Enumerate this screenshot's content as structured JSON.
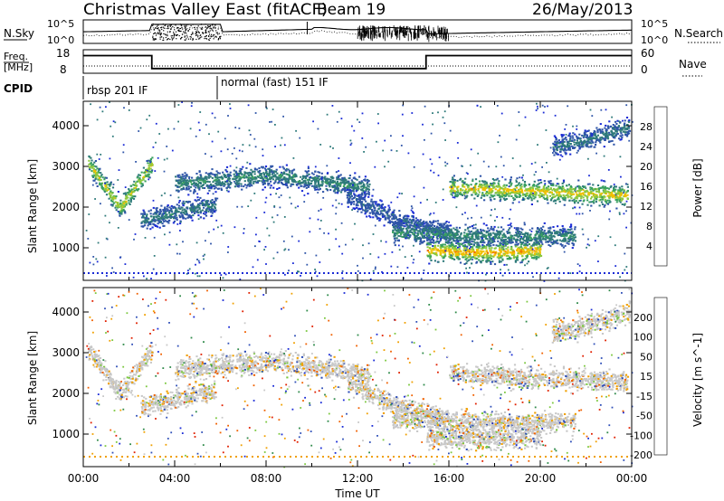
{
  "header": {
    "station": "Christmas Valley East (fitACF)",
    "beam": "Beam 19",
    "date": "26/May/2013"
  },
  "chart_data": [
    {
      "type": "line",
      "panel": "noise",
      "left_label": "N.Sky",
      "right_label": "N.Search",
      "left_ticks": [
        "10^5",
        "10^0"
      ],
      "right_ticks": [
        "10^5",
        "10^0"
      ],
      "xlim": [
        "00:00",
        "24:00"
      ]
    },
    {
      "type": "line",
      "panel": "frequency",
      "left_label": "Freq. [MHz]",
      "right_label": "Nave",
      "left_ticks": [
        "18",
        "8"
      ],
      "right_ticks": [
        "60",
        "0"
      ],
      "freq_steps": [
        {
          "start": "00:00",
          "end": "03:00",
          "freq_mhz": 15.5
        },
        {
          "start": "03:00",
          "end": "15:00",
          "freq_mhz": 10.0
        },
        {
          "start": "15:00",
          "end": "24:00",
          "freq_mhz": 15.5
        }
      ]
    },
    {
      "type": "table",
      "panel": "cpid",
      "label": "CPID",
      "segments": [
        {
          "start": "00:00",
          "end": "06:00",
          "label": "rbsp 201 IF"
        },
        {
          "start": "06:00",
          "end": "24:00",
          "label": "normal (fast) 151 IF"
        }
      ]
    },
    {
      "type": "heatmap",
      "panel": "power",
      "ylabel": "Slant Range [km]",
      "yticks": [
        "1000",
        "2000",
        "3000",
        "4000"
      ],
      "ylim": [
        200,
        4600
      ],
      "colorbar_label": "Power [dB]",
      "colorbar_ticks": [
        "28",
        "24",
        "20",
        "16",
        "12",
        "8",
        "4"
      ],
      "colors": [
        "#1a2bd6",
        "#2f55a8",
        "#2e7a7a",
        "#3aa060",
        "#8cc840",
        "#f0c000",
        "#f07000",
        "#e02000"
      ],
      "bands": [
        {
          "t0": 0.2,
          "t1": 3.0,
          "r_center": [
            3100,
            2000,
            3100
          ],
          "power_db": 20
        },
        {
          "t0": 2.5,
          "t1": 5.8,
          "r_center": [
            1700,
            1900,
            2100
          ],
          "power_db": 10
        },
        {
          "t0": 4.0,
          "t1": 12.5,
          "r_center": [
            2600,
            2800,
            2500
          ],
          "power_db": 12
        },
        {
          "t0": 11.5,
          "t1": 16.0,
          "r_center": [
            2300,
            1700,
            1400
          ],
          "power_db": 8
        },
        {
          "t0": 13.5,
          "t1": 21.5,
          "r_center": [
            1400,
            1300,
            1300
          ],
          "power_db": 12
        },
        {
          "t0": 15.0,
          "t1": 20.0,
          "r_center": [
            950,
            900,
            950
          ],
          "power_db": 24
        },
        {
          "t0": 16.0,
          "t1": 23.8,
          "r_center": [
            2500,
            2400,
            2300
          ],
          "power_db": 22
        },
        {
          "t0": 20.5,
          "t1": 23.9,
          "r_center": [
            3500,
            3700,
            4000
          ],
          "power_db": 10
        }
      ]
    },
    {
      "type": "heatmap",
      "panel": "velocity",
      "ylabel": "Slant Range [km]",
      "yticks": [
        "1000",
        "2000",
        "3000",
        "4000"
      ],
      "ylim": [
        200,
        4600
      ],
      "colorbar_label": "Velocity [m s^-1]",
      "colorbar_ticks": [
        "200",
        "100",
        "50",
        "15",
        "-15",
        "-50",
        "-100",
        "-200"
      ],
      "colors": [
        "#1a2bd6",
        "#3050b8",
        "#2f8a4a",
        "#7cc840",
        "#c8c8c8",
        "#f0a000",
        "#f06000",
        "#e02000"
      ],
      "xlabel": "Time UT",
      "xticks": [
        "00:00",
        "04:00",
        "08:00",
        "12:00",
        "16:00",
        "20:00",
        "00:00"
      ]
    }
  ]
}
